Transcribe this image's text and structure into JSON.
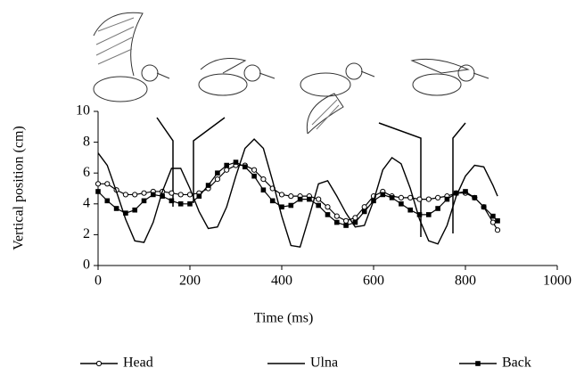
{
  "chart_data": {
    "type": "line",
    "x_label": "Time (ms)",
    "y_label": "Vertical position (cm)",
    "x": [
      0,
      20,
      40,
      60,
      80,
      100,
      120,
      140,
      160,
      180,
      200,
      220,
      240,
      260,
      280,
      300,
      320,
      340,
      360,
      380,
      400,
      420,
      440,
      460,
      480,
      500,
      520,
      540,
      560,
      580,
      600,
      620,
      640,
      660,
      680,
      700,
      720,
      740,
      760,
      780,
      800,
      820,
      840,
      860,
      870
    ],
    "series": [
      {
        "name": "Head",
        "color": "#000000",
        "marker": "open-circle",
        "values": [
          5.3,
          5.3,
          4.9,
          4.6,
          4.6,
          4.7,
          4.8,
          4.8,
          4.7,
          4.6,
          4.6,
          4.7,
          5.0,
          5.6,
          6.2,
          6.5,
          6.5,
          6.2,
          5.6,
          5.0,
          4.6,
          4.5,
          4.5,
          4.5,
          4.3,
          3.8,
          3.2,
          2.9,
          3.1,
          3.8,
          4.5,
          4.8,
          4.5,
          4.4,
          4.4,
          4.3,
          4.3,
          4.4,
          4.5,
          4.7,
          4.7,
          4.4,
          3.8,
          2.8,
          2.3
        ]
      },
      {
        "name": "Ulna",
        "color": "#000000",
        "marker": "none",
        "values": [
          7.3,
          6.5,
          4.8,
          3.0,
          1.6,
          1.5,
          2.8,
          4.8,
          6.3,
          6.3,
          5.0,
          3.5,
          2.4,
          2.5,
          3.8,
          5.8,
          7.6,
          8.2,
          7.6,
          5.5,
          3.2,
          1.3,
          1.2,
          3.2,
          5.3,
          5.5,
          4.5,
          3.4,
          2.5,
          2.6,
          4.2,
          6.2,
          7.0,
          6.6,
          5.0,
          3.0,
          1.6,
          1.4,
          2.6,
          4.5,
          5.8,
          6.5,
          6.4,
          5.2,
          4.5
        ]
      },
      {
        "name": "Back",
        "color": "#000000",
        "marker": "filled-square",
        "values": [
          4.8,
          4.2,
          3.7,
          3.4,
          3.6,
          4.2,
          4.6,
          4.5,
          4.2,
          4.0,
          4.0,
          4.5,
          5.2,
          6.0,
          6.5,
          6.7,
          6.4,
          5.8,
          4.9,
          4.2,
          3.8,
          3.9,
          4.3,
          4.3,
          3.9,
          3.3,
          2.8,
          2.6,
          2.8,
          3.5,
          4.2,
          4.6,
          4.4,
          4.0,
          3.6,
          3.3,
          3.3,
          3.7,
          4.3,
          4.7,
          4.8,
          4.4,
          3.8,
          3.2,
          2.9
        ]
      }
    ],
    "xlim": [
      0,
      1000
    ],
    "xticks": [
      0,
      200,
      400,
      600,
      800,
      1000
    ],
    "ylim": [
      0,
      10
    ],
    "yticks": [
      0,
      2,
      4,
      6,
      8,
      10
    ],
    "legend": "bottom"
  }
}
